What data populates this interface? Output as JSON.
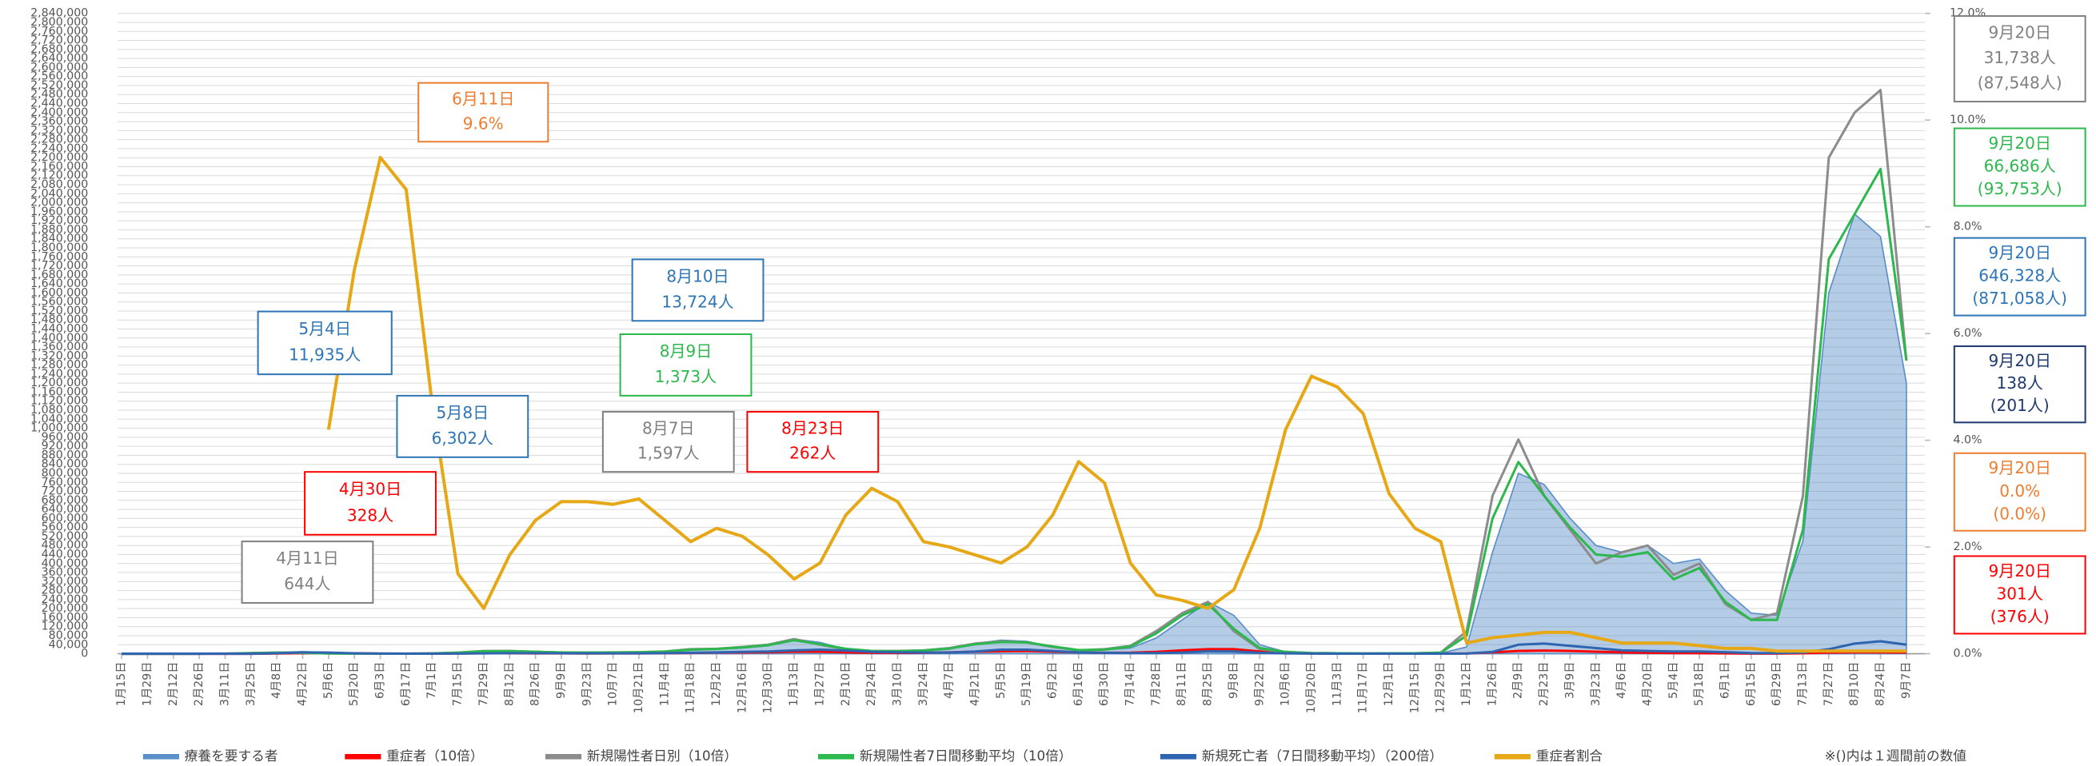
{
  "chart_data": {
    "type": "line",
    "categories": [
      "1月15日",
      "1月29日",
      "2月12日",
      "2月26日",
      "3月11日",
      "3月25日",
      "4月8日",
      "4月22日",
      "5月6日",
      "5月20日",
      "6月3日",
      "6月17日",
      "7月1日",
      "7月15日",
      "7月29日",
      "8月12日",
      "8月26日",
      "9月9日",
      "9月23日",
      "10月7日",
      "10月21日",
      "11月4日",
      "11月18日",
      "12月2日",
      "12月16日",
      "12月30日",
      "1月13日",
      "1月27日",
      "2月10日",
      "2月24日",
      "3月10日",
      "3月24日",
      "4月7日",
      "4月21日",
      "5月5日",
      "5月19日",
      "6月2日",
      "6月16日",
      "6月30日",
      "7月14日",
      "7月28日",
      "8月11日",
      "8月25日",
      "9月8日",
      "9月22日",
      "10月6日",
      "10月20日",
      "11月3日",
      "11月17日",
      "12月1日",
      "12月15日",
      "12月29日",
      "1月12日",
      "1月26日",
      "2月9日",
      "2月23日",
      "3月9日",
      "3月23日",
      "4月6日",
      "4月20日",
      "5月4日",
      "5月18日",
      "6月1日",
      "6月15日",
      "6月29日",
      "7月13日",
      "7月27日",
      "8月10日",
      "8月24日",
      "9月7日"
    ],
    "series": [
      {
        "name": "療養を要する者",
        "type": "area",
        "color": "#5b8fc7",
        "values": [
          0,
          0,
          0,
          0,
          500,
          1500,
          6000,
          9000,
          6000,
          2000,
          1000,
          800,
          1000,
          4000,
          10000,
          14000,
          11000,
          7000,
          5000,
          5000,
          6000,
          8000,
          15000,
          20000,
          25000,
          35000,
          65000,
          50000,
          20000,
          10000,
          9000,
          12000,
          20000,
          45000,
          60000,
          55000,
          30000,
          15000,
          17000,
          25000,
          70000,
          150000,
          230000,
          170000,
          40000,
          8000,
          3000,
          1500,
          1000,
          1000,
          1200,
          2000,
          30000,
          450000,
          800000,
          750000,
          600000,
          480000,
          450000,
          480000,
          400000,
          420000,
          280000,
          180000,
          170000,
          500000,
          1600000,
          1950000,
          1850000,
          1200000
        ]
      },
      {
        "name": "重症者（10倍）",
        "type": "line",
        "color": "#ff0000",
        "values": [
          0,
          0,
          0,
          0,
          0,
          0,
          1000,
          2500,
          3000,
          1500,
          500,
          300,
          300,
          1000,
          2500,
          2000,
          1500,
          1500,
          1300,
          1500,
          1500,
          2000,
          3500,
          5000,
          5500,
          6500,
          9000,
          9000,
          6000,
          4000,
          3500,
          4000,
          6000,
          9000,
          11000,
          12000,
          9000,
          6000,
          4000,
          4500,
          8000,
          15000,
          20000,
          20000,
          10000,
          3000,
          1000,
          500,
          300,
          300,
          300,
          500,
          1000,
          6000,
          12000,
          14000,
          12000,
          9000,
          6000,
          4000,
          3000,
          2500,
          1500,
          800,
          700,
          2000,
          5000,
          6000,
          6000,
          5000
        ]
      },
      {
        "name": "新規陽性者日別（10倍）",
        "type": "line",
        "color": "#8c8c8c",
        "values": [
          0,
          0,
          0,
          0,
          500,
          3000,
          5000,
          4000,
          1000,
          500,
          300,
          500,
          1500,
          5000,
          12000,
          12000,
          8000,
          5000,
          5000,
          6000,
          7000,
          10000,
          20000,
          22000,
          30000,
          40000,
          65000,
          40000,
          20000,
          12000,
          12000,
          15000,
          25000,
          45000,
          55000,
          50000,
          30000,
          15000,
          20000,
          35000,
          100000,
          180000,
          230000,
          100000,
          20000,
          8000,
          3000,
          2000,
          1000,
          1500,
          2000,
          5000,
          100000,
          700000,
          950000,
          700000,
          550000,
          400000,
          450000,
          480000,
          350000,
          400000,
          220000,
          150000,
          180000,
          700000,
          2200000,
          2400000,
          2500000,
          1300000
        ]
      },
      {
        "name": "新規陽性者7日間移動平均（10倍）",
        "type": "line",
        "color": "#2db84d",
        "values": [
          0,
          0,
          0,
          0,
          400,
          2500,
          4500,
          4000,
          1200,
          500,
          300,
          400,
          1200,
          4500,
          11000,
          11500,
          8500,
          5500,
          5000,
          5500,
          6500,
          9500,
          18000,
          21000,
          28000,
          38000,
          60000,
          42000,
          22000,
          12000,
          11500,
          14000,
          23000,
          42000,
          52000,
          50000,
          32000,
          16000,
          18000,
          32000,
          90000,
          170000,
          220000,
          110000,
          25000,
          8000,
          3000,
          2000,
          1000,
          1400,
          1800,
          4500,
          80000,
          600000,
          850000,
          700000,
          560000,
          440000,
          430000,
          450000,
          330000,
          380000,
          230000,
          150000,
          150000,
          550000,
          1750000,
          1950000,
          2150000,
          1300000
        ]
      },
      {
        "name": "新規死亡者（7日間移動平均）（200倍）",
        "type": "line",
        "color": "#2e64b0",
        "values": [
          0,
          0,
          0,
          0,
          0,
          0,
          2000,
          6000,
          5000,
          2000,
          500,
          300,
          200,
          500,
          1500,
          2500,
          2500,
          2000,
          1500,
          1500,
          1500,
          2500,
          4000,
          6000,
          8000,
          10000,
          15000,
          18000,
          14000,
          8000,
          6000,
          5000,
          5000,
          10000,
          18000,
          18000,
          12000,
          6000,
          4000,
          3000,
          3000,
          5000,
          11000,
          10000,
          4000,
          1500,
          500,
          300,
          200,
          200,
          300,
          300,
          500,
          8000,
          40000,
          45000,
          35000,
          25000,
          15000,
          12000,
          10000,
          10000,
          7000,
          3000,
          2500,
          5000,
          20000,
          45000,
          55000,
          40000
        ]
      },
      {
        "name": "重症者割合",
        "type": "line",
        "axis": "y2",
        "color": "#e6a817",
        "values": [
          null,
          null,
          null,
          null,
          null,
          null,
          null,
          null,
          4.2,
          7.2,
          9.3,
          8.7,
          4.7,
          1.5,
          0.85,
          1.85,
          2.5,
          2.85,
          2.85,
          2.8,
          2.9,
          2.5,
          2.1,
          2.35,
          2.2,
          1.85,
          1.4,
          1.7,
          2.6,
          3.1,
          2.85,
          2.1,
          2.0,
          1.85,
          1.7,
          2.0,
          2.6,
          3.6,
          3.2,
          1.7,
          1.1,
          1.0,
          0.85,
          1.2,
          2.35,
          4.2,
          5.2,
          5.0,
          4.5,
          3.0,
          2.35,
          2.1,
          0.2,
          0.3,
          0.35,
          0.4,
          0.4,
          0.3,
          0.2,
          0.2,
          0.2,
          0.15,
          0.1,
          0.1,
          0.05,
          0.05,
          0.05,
          0.05,
          0.05,
          0.05
        ]
      }
    ],
    "ylim": [
      0,
      2840000
    ],
    "yticks": [
      0,
      {
        "value": 40000,
        "label": "40,000"
      },
      {
        "value": 80000,
        "label": "80,000"
      },
      {
        "value": 120000,
        "label": "120,000"
      },
      {
        "value": 160000,
        "label": "160,000"
      },
      {
        "value": 200000,
        "label": "200,000"
      },
      {
        "value": 240000,
        "label": "240,000"
      },
      {
        "value": 280000,
        "label": "280,000"
      },
      {
        "value": 320000,
        "label": "320,000"
      },
      {
        "value": 360000,
        "label": "360,000"
      },
      {
        "value": 400000,
        "label": "400,000"
      },
      {
        "value": 440000,
        "label": "440,000"
      },
      {
        "value": 480000,
        "label": "480,000"
      },
      {
        "value": 520000,
        "label": "520,000"
      },
      {
        "value": 560000,
        "label": "560,000"
      },
      {
        "value": 600000,
        "label": "600,000"
      },
      {
        "value": 640000,
        "label": "640,000"
      },
      {
        "value": 680000,
        "label": "680,000"
      },
      {
        "value": 720000,
        "label": "720,000"
      },
      {
        "value": 760000,
        "label": "760,000"
      },
      {
        "value": 800000,
        "label": "800,000"
      },
      {
        "value": 840000,
        "label": "840,000"
      },
      {
        "value": 880000,
        "label": "880,000"
      },
      {
        "value": 920000,
        "label": "920,000"
      },
      {
        "value": 960000,
        "label": "960,000"
      },
      {
        "value": 1000000,
        "label": "1,000,000"
      },
      {
        "value": 1040000,
        "label": "1,040,000"
      },
      {
        "value": 1080000,
        "label": "1,080,000"
      },
      {
        "value": 1120000,
        "label": "1,120,000"
      },
      {
        "value": 1160000,
        "label": "1,160,000"
      },
      {
        "value": 1200000,
        "label": "1,200,000"
      },
      {
        "value": 1240000,
        "label": "1,240,000"
      },
      {
        "value": 1280000,
        "label": "1,280,000"
      },
      {
        "value": 1320000,
        "label": "1,320,000"
      },
      {
        "value": 1360000,
        "label": "1,360,000"
      },
      {
        "value": 1400000,
        "label": "1,400,000"
      },
      {
        "value": 1440000,
        "label": "1,440,000"
      },
      {
        "value": 1480000,
        "label": "1,480,000"
      },
      {
        "value": 1520000,
        "label": "1,520,000"
      },
      {
        "value": 1560000,
        "label": "1,560,000"
      },
      {
        "value": 1600000,
        "label": "1,600,000"
      },
      {
        "value": 1640000,
        "label": "1,640,000"
      },
      {
        "value": 1680000,
        "label": "1,680,000"
      },
      {
        "value": 1720000,
        "label": "1,720,000"
      },
      {
        "value": 1760000,
        "label": "1,760,000"
      },
      {
        "value": 1800000,
        "label": "1,800,000"
      },
      {
        "value": 1840000,
        "label": "1,840,000"
      },
      {
        "value": 1880000,
        "label": "1,880,000"
      },
      {
        "value": 1920000,
        "label": "1,920,000"
      },
      {
        "value": 1960000,
        "label": "1,960,000"
      },
      {
        "value": 2000000,
        "label": "2,000,000"
      },
      {
        "value": 2040000,
        "label": "2,040,000"
      },
      {
        "value": 2080000,
        "label": "2,080,000"
      },
      {
        "value": 2120000,
        "label": "2,120,000"
      },
      {
        "value": 2160000,
        "label": "2,160,000"
      },
      {
        "value": 2200000,
        "label": "2,200,000"
      },
      {
        "value": 2240000,
        "label": "2,240,000"
      },
      {
        "value": 2280000,
        "label": "2,280,000"
      },
      {
        "value": 2320000,
        "label": "2,320,000"
      },
      {
        "value": 2360000,
        "label": "2,360,000"
      },
      {
        "value": 2400000,
        "label": "2,400,000"
      },
      {
        "value": 2440000,
        "label": "2,440,000"
      },
      {
        "value": 2480000,
        "label": "2,480,000"
      },
      {
        "value": 2520000,
        "label": "2,520,000"
      },
      {
        "value": 2560000,
        "label": "2,560,000"
      },
      {
        "value": 2600000,
        "label": "2,600,000"
      },
      {
        "value": 2640000,
        "label": "2,640,000"
      },
      {
        "value": 2680000,
        "label": "2,680,000"
      },
      {
        "value": 2720000,
        "label": "2,720,000"
      },
      {
        "value": 2760000,
        "label": "2,760,000"
      },
      {
        "value": 2800000,
        "label": "2,800,000"
      },
      {
        "value": 2840000,
        "label": "2,840,000"
      }
    ],
    "y2lim": [
      0,
      12
    ],
    "y2ticks": [
      {
        "value": 0,
        "label": "0.0%"
      },
      {
        "value": 2,
        "label": "2.0%"
      },
      {
        "value": 4,
        "label": "4.0%"
      },
      {
        "value": 6,
        "label": "6.0%"
      },
      {
        "value": 8,
        "label": "8.0%"
      },
      {
        "value": 10,
        "label": "10.0%"
      },
      {
        "value": 12,
        "label": "12.0%"
      }
    ],
    "grid": true,
    "legend": "bottom",
    "annotations": [
      {
        "lines": [
          "6月11日",
          "9.6%"
        ],
        "color": "#ed7d31"
      },
      {
        "lines": [
          "5月4日",
          "11,935人"
        ],
        "color": "#2e75b6"
      },
      {
        "lines": [
          "8月10日",
          "13,724人"
        ],
        "color": "#2e75b6"
      },
      {
        "lines": [
          "8月9日",
          "1,373人"
        ],
        "color": "#2db84d"
      },
      {
        "lines": [
          "5月8日",
          "6,302人"
        ],
        "color": "#2e75b6"
      },
      {
        "lines": [
          "8月7日",
          "1,597人"
        ],
        "color": "#808080"
      },
      {
        "lines": [
          "8月23日",
          "262人"
        ],
        "color": "#ff0000"
      },
      {
        "lines": [
          "4月30日",
          "328人"
        ],
        "color": "#ff0000"
      },
      {
        "lines": [
          "4月11日",
          "644人"
        ],
        "color": "#808080"
      },
      {
        "lines": [
          "9月20日",
          "31,738人",
          "(87,548人)"
        ],
        "color": "#808080"
      },
      {
        "lines": [
          "9月20日",
          "66,686人",
          "(93,753人)"
        ],
        "color": "#2db84d"
      },
      {
        "lines": [
          "9月20日",
          "646,328人",
          "(871,058人)"
        ],
        "color": "#2e75b6"
      },
      {
        "lines": [
          "9月20日",
          "138人",
          "(201人)"
        ],
        "color": "#1f3a6e"
      },
      {
        "lines": [
          "9月20日",
          "0.0%",
          "(0.0%)"
        ],
        "color": "#ed7d31"
      },
      {
        "lines": [
          "9月20日",
          "301人",
          "(376人)"
        ],
        "color": "#ff0000"
      }
    ],
    "note": "※()内は１週間前の数値"
  }
}
